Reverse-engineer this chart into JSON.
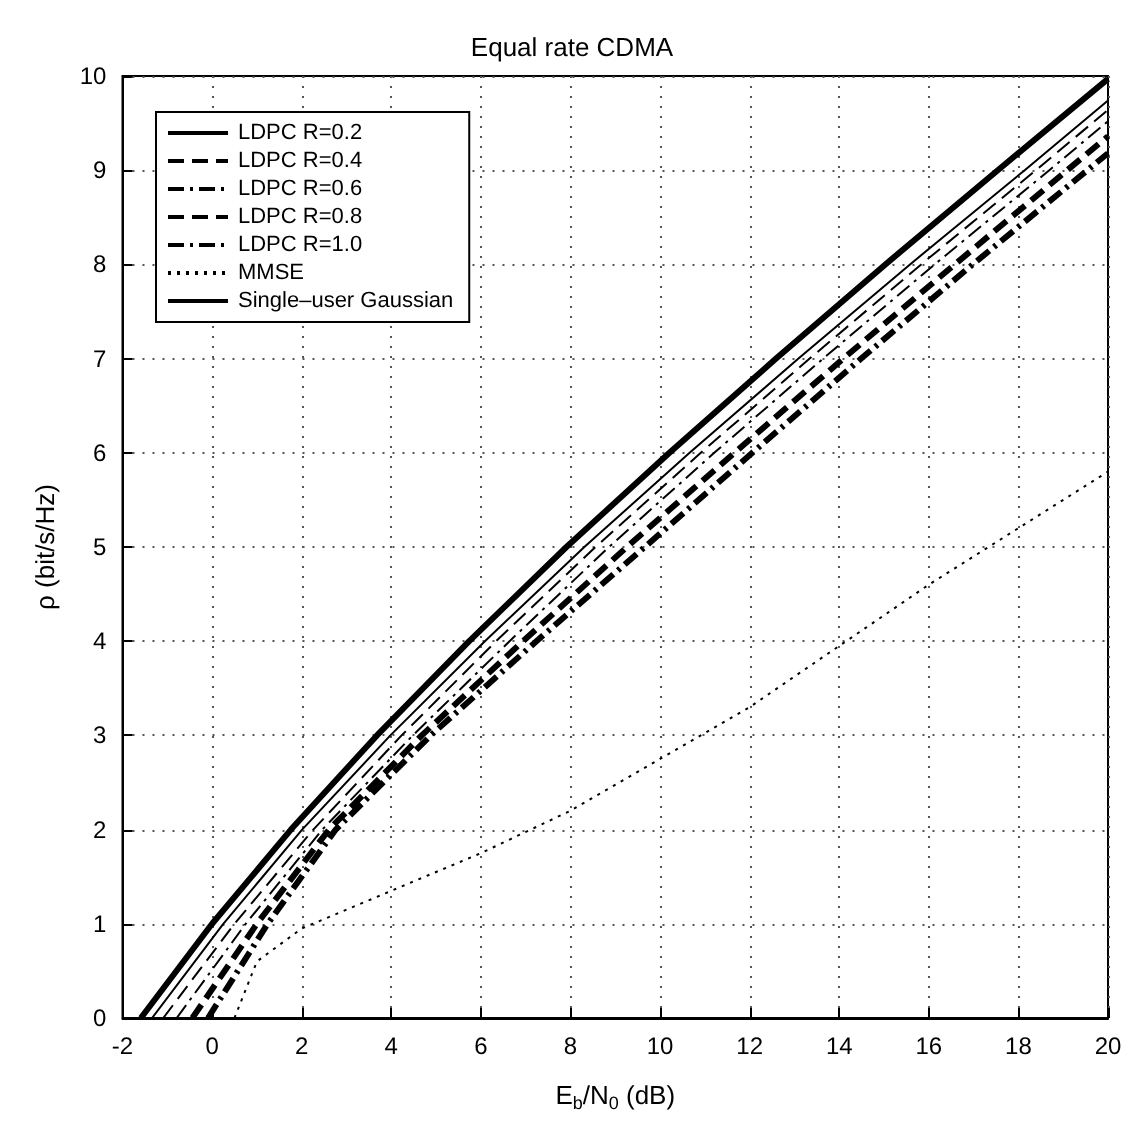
{
  "chart_data": {
    "type": "line",
    "title": "Equal rate CDMA",
    "xlabel": "E$_{b}$/N$_{0}$ (dB)",
    "ylabel": "ρ (bit/s/Hz)",
    "xlim": [
      -2,
      20
    ],
    "xticks": [
      -2,
      0,
      2,
      4,
      6,
      8,
      10,
      12,
      14,
      16,
      18,
      20
    ],
    "ylim": [
      0,
      10
    ],
    "yticks": [
      0,
      1,
      2,
      3,
      4,
      5,
      6,
      7,
      8,
      9,
      10
    ],
    "grid": true,
    "legend": "top left",
    "marker": "none",
    "series": [
      {
        "name": "LDPC R=0.2",
        "color": "#000000",
        "line_style": "solid",
        "x": [
          -1.34,
          0.25,
          2.01,
          3.98,
          6.09,
          8.31,
          10.66,
          13.09,
          15.58,
          18.14,
          20
        ],
        "values": [
          0,
          1,
          2,
          3,
          4,
          5,
          6,
          7,
          8,
          9,
          9.74
        ]
      },
      {
        "name": "LDPC R=0.4",
        "color": "#000000",
        "line_style": "dashed",
        "x": [
          -1.09,
          0.5,
          2.26,
          4.23,
          6.34,
          8.56,
          10.91,
          13.34,
          15.83,
          18.39,
          20
        ],
        "values": [
          0,
          1,
          2,
          3,
          4,
          5,
          6,
          7,
          8,
          9,
          9.64
        ]
      },
      {
        "name": "LDPC R=0.6",
        "color": "#000000",
        "line_style": "dashdot",
        "x": [
          -0.79,
          0.75,
          2.46,
          4.48,
          6.64,
          8.86,
          11.21,
          13.64,
          16.13,
          18.69,
          20
        ],
        "values": [
          0,
          1,
          2,
          3,
          4,
          5,
          6,
          7,
          8,
          9,
          9.52
        ]
      },
      {
        "name": "LDPC R=0.8",
        "color": "#000000",
        "line_style": "dashed",
        "x": [
          -0.44,
          1.0,
          2.61,
          4.68,
          6.94,
          9.26,
          11.66,
          14.09,
          16.58,
          19.09,
          20
        ],
        "values": [
          0,
          1,
          2,
          3,
          4,
          5,
          6,
          7,
          8,
          9,
          9.36
        ]
      },
      {
        "name": "LDPC R=1.0",
        "color": "#000000",
        "line_style": "dashdot",
        "x": [
          -0.09,
          1.24,
          2.76,
          4.88,
          7.24,
          9.66,
          12.06,
          14.49,
          16.98,
          19.54,
          20
        ],
        "values": [
          0,
          1,
          2,
          3,
          4,
          5,
          6,
          7,
          8,
          9,
          9.18
        ]
      },
      {
        "name": "MMSE",
        "color": "#000000",
        "line_style": "dotted",
        "x": [
          0.5,
          1.0,
          2,
          4,
          6,
          8,
          10,
          12,
          14,
          16,
          18,
          20
        ],
        "values": [
          0,
          0.6,
          0.95,
          1.35,
          1.75,
          2.2,
          2.75,
          3.3,
          3.95,
          4.6,
          5.2,
          5.8
        ]
      },
      {
        "name": "Single–user Gaussian",
        "color": "#000000",
        "line_style": "solid",
        "x": [
          -1.59,
          0,
          1.76,
          3.68,
          5.74,
          7.91,
          10.21,
          12.59,
          15.03,
          17.54,
          20
        ],
        "values": [
          0,
          1,
          2,
          3,
          4,
          5,
          6,
          7,
          8,
          9,
          9.97
        ]
      }
    ]
  }
}
